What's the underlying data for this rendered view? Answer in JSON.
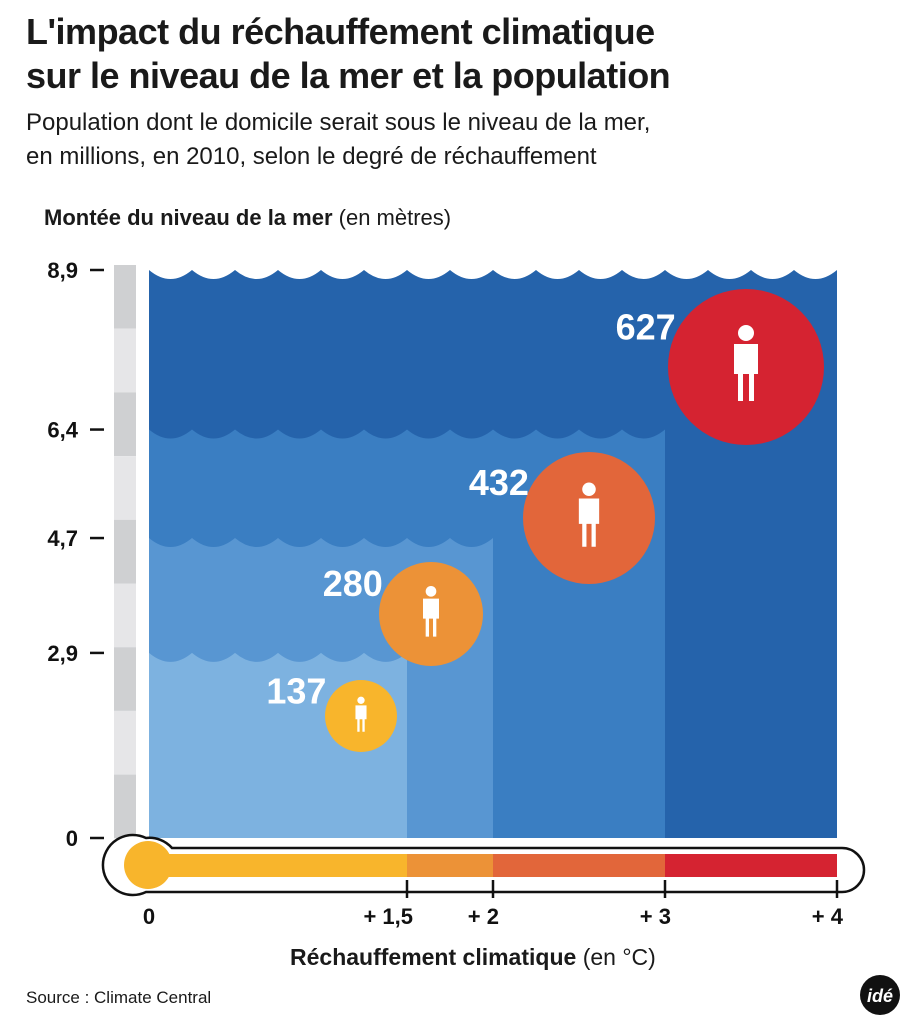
{
  "title_line1": "L'impact du réchauffement climatique",
  "title_line2": "sur le niveau de la mer et la population",
  "subtitle_line1": "Population dont le domicile serait sous le niveau de la mer,",
  "subtitle_line2": "en millions, en 2010, selon le degré de réchauffement",
  "source": "Source : Climate Central",
  "logo": "idé",
  "chart_data": {
    "type": "bar",
    "title": "L'impact du réchauffement climatique sur le niveau de la mer et la population",
    "ylabel_bold": "Montée du niveau de la mer",
    "ylabel_unit": "(en mètres)",
    "xlabel_bold": "Réchauffement climatique",
    "xlabel_unit": "(en °C)",
    "ylim": [
      0,
      8.9
    ],
    "xlim": [
      0,
      4
    ],
    "y_ticks": [
      "0",
      "2,9",
      "4,7",
      "6,4",
      "8,9"
    ],
    "y_tick_values": [
      0,
      2.9,
      4.7,
      6.4,
      8.9
    ],
    "x_ticks": [
      "0",
      "+ 1,5",
      "+ 2",
      "+ 3",
      "+ 4"
    ],
    "x_tick_values": [
      0,
      1.5,
      2,
      3,
      4
    ],
    "series": [
      {
        "warming": 1.5,
        "sea_level_m": 2.9,
        "population_millions": 137,
        "label": "137",
        "water_color": "#7db2e0",
        "circle_color": "#f8b52c"
      },
      {
        "warming": 2,
        "sea_level_m": 4.7,
        "population_millions": 280,
        "label": "280",
        "water_color": "#5896d2",
        "circle_color": "#ec9237"
      },
      {
        "warming": 3,
        "sea_level_m": 6.4,
        "population_millions": 432,
        "label": "432",
        "water_color": "#3a7ec2",
        "circle_color": "#e2663a"
      },
      {
        "warming": 4,
        "sea_level_m": 8.9,
        "population_millions": 627,
        "label": "627",
        "water_color": "#2563ab",
        "circle_color": "#d52331"
      }
    ]
  }
}
